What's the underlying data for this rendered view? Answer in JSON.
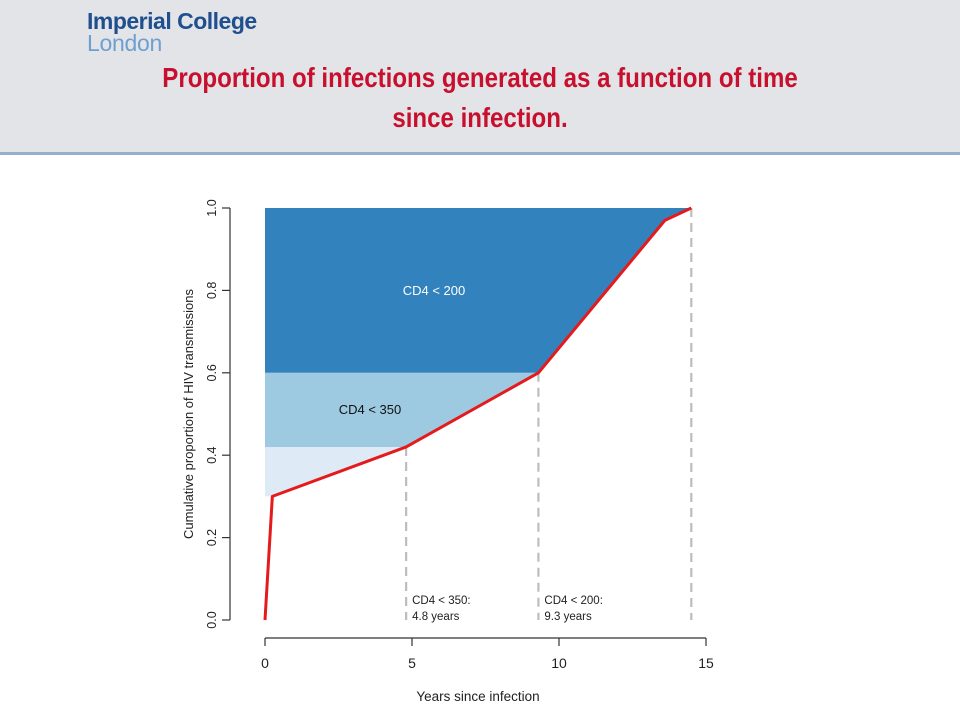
{
  "header": {
    "logo_line1": "Imperial College",
    "logo_line2": "London",
    "title_line1": "Proportion of infections generated as a function of time",
    "title_line2": "since infection."
  },
  "colors": {
    "cd4_200_region": "#3282bd",
    "cd4_350_region": "#9ecae1",
    "early_region": "#deebf7",
    "curve": "#e41a1c",
    "dashed": "#bdbdbd"
  },
  "chart_data": {
    "type": "area",
    "xlabel": "Years since infection",
    "ylabel": "Cumulative proportion of HIV transmissions",
    "xlim": [
      0,
      15
    ],
    "ylim": [
      0,
      1
    ],
    "x_ticks": [
      0,
      5,
      10,
      15
    ],
    "y_ticks": [
      0.0,
      0.2,
      0.4,
      0.6,
      0.8,
      1.0
    ],
    "x_tick_labels": [
      "0",
      "5",
      "10",
      "15"
    ],
    "y_tick_labels": [
      "0.0",
      "0.2",
      "0.4",
      "0.6",
      "0.8",
      "1.0"
    ],
    "series": [
      {
        "x": [
          0,
          0.25,
          4.8,
          9.3,
          13.6,
          14.5
        ],
        "y": [
          0,
          0.3,
          0.42,
          0.6,
          0.97,
          1.0
        ]
      }
    ],
    "regions": [
      {
        "label": "",
        "y_range": [
          0.3,
          0.42
        ]
      },
      {
        "label": "CD4 < 350",
        "y_range": [
          0.42,
          0.6
        ]
      },
      {
        "label": "CD4 < 200",
        "y_range": [
          0.6,
          1.0
        ]
      }
    ],
    "vlines": [
      {
        "x": 4.8,
        "label_line1": "CD4 < 350:",
        "label_line2": "4.8 years"
      },
      {
        "x": 9.3,
        "label_line1": "CD4 < 200:",
        "label_line2": "9.3 years"
      },
      {
        "x": 14.5
      }
    ],
    "grid": false
  }
}
